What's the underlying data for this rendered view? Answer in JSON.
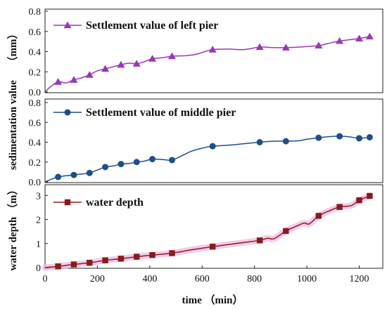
{
  "chart_data": [
    {
      "type": "line",
      "ylabel": "（mm）",
      "ylim": [
        0,
        0.8
      ],
      "yticks": [
        0.0,
        0.2,
        0.4,
        0.6,
        0.8
      ],
      "ytick_labels": [
        "0.0",
        "0.2",
        "0.4",
        "0.6",
        "0.8"
      ],
      "marker": "triangle",
      "series": [
        {
          "name": "Settlement value of left pier",
          "color": "#9a36b8",
          "line": [
            [
              0,
              0
            ],
            [
              20,
              0.05
            ],
            [
              50,
              0.1
            ],
            [
              80,
              0.09
            ],
            [
              110,
              0.12
            ],
            [
              140,
              0.14
            ],
            [
              170,
              0.17
            ],
            [
              200,
              0.21
            ],
            [
              230,
              0.23
            ],
            [
              260,
              0.25
            ],
            [
              290,
              0.27
            ],
            [
              320,
              0.285
            ],
            [
              350,
              0.28
            ],
            [
              380,
              0.3
            ],
            [
              410,
              0.33
            ],
            [
              450,
              0.34
            ],
            [
              485,
              0.355
            ],
            [
              540,
              0.36
            ],
            [
              580,
              0.375
            ],
            [
              610,
              0.4
            ],
            [
              640,
              0.42
            ],
            [
              700,
              0.425
            ],
            [
              760,
              0.42
            ],
            [
              820,
              0.445
            ],
            [
              870,
              0.44
            ],
            [
              920,
              0.44
            ],
            [
              970,
              0.445
            ],
            [
              1045,
              0.46
            ],
            [
              1080,
              0.48
            ],
            [
              1125,
              0.505
            ],
            [
              1170,
              0.52
            ],
            [
              1200,
              0.53
            ],
            [
              1240,
              0.55
            ]
          ],
          "points": [
            [
              50,
              0.1
            ],
            [
              110,
              0.12
            ],
            [
              170,
              0.17
            ],
            [
              230,
              0.23
            ],
            [
              290,
              0.27
            ],
            [
              350,
              0.28
            ],
            [
              410,
              0.33
            ],
            [
              485,
              0.355
            ],
            [
              640,
              0.42
            ],
            [
              820,
              0.445
            ],
            [
              920,
              0.44
            ],
            [
              1045,
              0.46
            ],
            [
              1125,
              0.505
            ],
            [
              1200,
              0.53
            ],
            [
              1240,
              0.55
            ]
          ]
        }
      ]
    },
    {
      "type": "line",
      "ylabel": "sedimentation value",
      "ylim": [
        0,
        0.8
      ],
      "yticks": [
        0.0,
        0.2,
        0.4,
        0.6,
        0.8
      ],
      "ytick_labels": [
        "0.0",
        "0.2",
        "0.4",
        "0.6",
        "0.8"
      ],
      "marker": "circle",
      "series": [
        {
          "name": "Settlement value of middle pier",
          "color": "#1c4f8c",
          "line": [
            [
              0,
              0
            ],
            [
              50,
              0.05
            ],
            [
              110,
              0.07
            ],
            [
              140,
              0.08
            ],
            [
              170,
              0.09
            ],
            [
              200,
              0.12
            ],
            [
              230,
              0.15
            ],
            [
              260,
              0.16
            ],
            [
              290,
              0.18
            ],
            [
              320,
              0.185
            ],
            [
              350,
              0.2
            ],
            [
              380,
              0.21
            ],
            [
              410,
              0.23
            ],
            [
              450,
              0.225
            ],
            [
              485,
              0.22
            ],
            [
              520,
              0.26
            ],
            [
              560,
              0.31
            ],
            [
              600,
              0.34
            ],
            [
              640,
              0.36
            ],
            [
              700,
              0.37
            ],
            [
              760,
              0.385
            ],
            [
              820,
              0.4
            ],
            [
              870,
              0.41
            ],
            [
              920,
              0.41
            ],
            [
              970,
              0.415
            ],
            [
              1000,
              0.43
            ],
            [
              1045,
              0.445
            ],
            [
              1080,
              0.455
            ],
            [
              1125,
              0.46
            ],
            [
              1160,
              0.455
            ],
            [
              1200,
              0.44
            ],
            [
              1240,
              0.45
            ]
          ],
          "points": [
            [
              50,
              0.05
            ],
            [
              110,
              0.07
            ],
            [
              170,
              0.09
            ],
            [
              230,
              0.15
            ],
            [
              290,
              0.18
            ],
            [
              350,
              0.2
            ],
            [
              410,
              0.23
            ],
            [
              485,
              0.22
            ],
            [
              640,
              0.36
            ],
            [
              820,
              0.4
            ],
            [
              920,
              0.41
            ],
            [
              1045,
              0.445
            ],
            [
              1125,
              0.46
            ],
            [
              1200,
              0.44
            ],
            [
              1240,
              0.45
            ]
          ]
        }
      ]
    },
    {
      "type": "line",
      "ylabel": "water depth （m）",
      "xlabel": "time （min）",
      "ylim": [
        0,
        3.3
      ],
      "yticks": [
        0,
        1,
        2,
        3
      ],
      "ytick_labels": [
        "0",
        "1",
        "2",
        "3"
      ],
      "xlim": [
        0,
        1290
      ],
      "xticks": [
        0,
        200,
        400,
        600,
        800,
        1000,
        1200
      ],
      "xtick_labels": [
        "0",
        "200",
        "400",
        "600",
        "800",
        "1000",
        "1200"
      ],
      "marker": "square",
      "series": [
        {
          "name": "water depth",
          "color": "#8b1a1a",
          "line": [
            [
              0,
              0
            ],
            [
              50,
              0.05
            ],
            [
              110,
              0.13
            ],
            [
              170,
              0.2
            ],
            [
              230,
              0.3
            ],
            [
              290,
              0.37
            ],
            [
              350,
              0.45
            ],
            [
              410,
              0.52
            ],
            [
              485,
              0.6
            ],
            [
              560,
              0.74
            ],
            [
              640,
              0.87
            ],
            [
              730,
              1.0
            ],
            [
              820,
              1.13
            ],
            [
              850,
              1.22
            ],
            [
              875,
              1.2
            ],
            [
              920,
              1.52
            ],
            [
              960,
              1.72
            ],
            [
              990,
              1.85
            ],
            [
              1010,
              1.82
            ],
            [
              1045,
              2.15
            ],
            [
              1090,
              2.38
            ],
            [
              1125,
              2.52
            ],
            [
              1170,
              2.58
            ],
            [
              1200,
              2.8
            ],
            [
              1240,
              2.98
            ]
          ],
          "points": [
            [
              50,
              0.05
            ],
            [
              110,
              0.13
            ],
            [
              170,
              0.2
            ],
            [
              230,
              0.3
            ],
            [
              290,
              0.37
            ],
            [
              350,
              0.45
            ],
            [
              410,
              0.52
            ],
            [
              485,
              0.6
            ],
            [
              640,
              0.87
            ],
            [
              820,
              1.13
            ],
            [
              920,
              1.52
            ],
            [
              1045,
              2.15
            ],
            [
              1125,
              2.52
            ],
            [
              1200,
              2.8
            ],
            [
              1240,
              2.98
            ]
          ]
        }
      ]
    }
  ]
}
